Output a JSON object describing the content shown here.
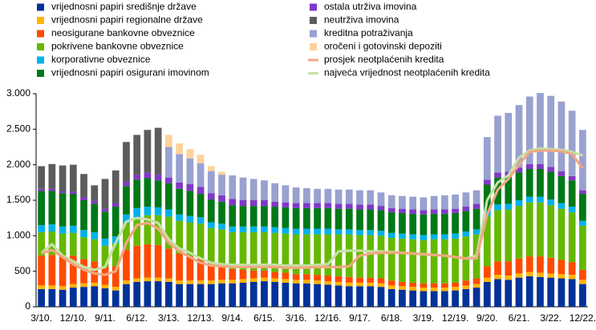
{
  "chart_data": {
    "type": "bar",
    "stacked": true,
    "categories": [
      "3/10.",
      null,
      null,
      "12/10.",
      null,
      null,
      "9/11.",
      null,
      null,
      "6/12.",
      null,
      null,
      "3/13.",
      null,
      null,
      "12/13.",
      null,
      null,
      "9/14.",
      null,
      null,
      "6/15.",
      null,
      null,
      "3/16.",
      null,
      null,
      "12/16.",
      null,
      null,
      "9/17.",
      null,
      null,
      "6/18.",
      null,
      null,
      "3/19.",
      null,
      null,
      "12/19.",
      null,
      null,
      "9/20.",
      null,
      null,
      "6/21.",
      null,
      null,
      "3/22.",
      null,
      null,
      "12/22."
    ],
    "ylim": [
      0,
      3000
    ],
    "yticks": [
      0,
      500,
      {
        "value": 1000,
        "label": "1.000"
      },
      {
        "value": 1500,
        "label": "1.500"
      },
      {
        "value": 2000,
        "label": "2.000"
      },
      {
        "value": 2500,
        "label": "2.500"
      },
      {
        "value": 3000,
        "label": "3.000"
      }
    ],
    "grid": false,
    "series": [
      {
        "name": "vrijednosni papiri središnje države",
        "color": "#003299",
        "values": [
          250,
          250,
          240,
          270,
          280,
          290,
          260,
          230,
          320,
          350,
          360,
          360,
          350,
          320,
          320,
          320,
          320,
          330,
          330,
          340,
          350,
          360,
          350,
          340,
          330,
          330,
          320,
          310,
          300,
          290,
          290,
          290,
          280,
          250,
          240,
          230,
          220,
          220,
          220,
          230,
          250,
          270,
          350,
          390,
          380,
          410,
          430,
          420,
          410,
          400,
          390,
          320
        ]
      },
      {
        "name": "vrijednosni papiri regionalne države",
        "color": "#ffb400",
        "values": [
          50,
          50,
          50,
          50,
          50,
          50,
          50,
          50,
          50,
          50,
          50,
          50,
          50,
          50,
          50,
          50,
          50,
          50,
          50,
          50,
          50,
          50,
          50,
          50,
          50,
          50,
          50,
          50,
          50,
          50,
          50,
          50,
          50,
          50,
          50,
          50,
          50,
          50,
          50,
          50,
          50,
          50,
          60,
          60,
          60,
          60,
          60,
          60,
          60,
          60,
          60,
          60
        ]
      },
      {
        "name": "neosigurane bankovne obveznice",
        "color": "#ff4b00",
        "values": [
          420,
          430,
          410,
          400,
          340,
          300,
          260,
          290,
          430,
          460,
          470,
          460,
          420,
          380,
          340,
          300,
          240,
          200,
          150,
          130,
          110,
          100,
          90,
          90,
          80,
          80,
          80,
          80,
          80,
          80,
          70,
          70,
          70,
          70,
          60,
          60,
          60,
          60,
          60,
          60,
          70,
          80,
          160,
          190,
          200,
          210,
          220,
          230,
          220,
          200,
          180,
          140
        ]
      },
      {
        "name": "pokrivene bankovne obveznice",
        "color": "#65b800",
        "values": [
          330,
          330,
          330,
          320,
          310,
          310,
          290,
          320,
          380,
          400,
          410,
          420,
          450,
          460,
          480,
          500,
          500,
          510,
          520,
          530,
          540,
          540,
          550,
          550,
          560,
          560,
          570,
          580,
          590,
          600,
          600,
          600,
          600,
          600,
          610,
          610,
          610,
          620,
          620,
          620,
          620,
          620,
          700,
          720,
          730,
          740,
          760,
          760,
          740,
          720,
          700,
          620
        ]
      },
      {
        "name": "korporativne obveznice",
        "color": "#00b1ea",
        "values": [
          100,
          100,
          100,
          100,
          100,
          100,
          100,
          100,
          120,
          130,
          120,
          110,
          100,
          90,
          90,
          90,
          80,
          80,
          80,
          80,
          80,
          80,
          80,
          80,
          80,
          80,
          80,
          80,
          70,
          70,
          70,
          70,
          70,
          70,
          70,
          70,
          70,
          70,
          70,
          70,
          70,
          70,
          80,
          80,
          80,
          80,
          80,
          80,
          80,
          80,
          80,
          70
        ]
      },
      {
        "name": "vrijednosni papiri osigurani imovinom",
        "color": "#007816",
        "values": [
          480,
          470,
          470,
          450,
          420,
          400,
          380,
          420,
          400,
          400,
          400,
          380,
          370,
          360,
          350,
          330,
          320,
          310,
          300,
          290,
          290,
          290,
          290,
          290,
          290,
          290,
          290,
          290,
          290,
          290,
          290,
          290,
          290,
          290,
          290,
          290,
          290,
          290,
          290,
          290,
          290,
          290,
          370,
          380,
          380,
          390,
          390,
          390,
          390,
          380,
          370,
          380
        ]
      },
      {
        "name": "ostala utrživa imovina",
        "color": "#8139c6",
        "values": [
          30,
          30,
          30,
          30,
          40,
          40,
          40,
          50,
          60,
          70,
          80,
          80,
          80,
          90,
          100,
          100,
          90,
          90,
          90,
          80,
          80,
          80,
          70,
          70,
          70,
          70,
          70,
          70,
          70,
          70,
          70,
          70,
          60,
          60,
          60,
          60,
          60,
          60,
          60,
          60,
          60,
          70,
          70,
          70,
          70,
          70,
          70,
          70,
          70,
          70,
          60,
          50
        ]
      },
      {
        "name": "neutrživa imovina",
        "color": "#5c5c5c",
        "values": [
          320,
          350,
          360,
          380,
          330,
          220,
          420,
          460,
          560,
          560,
          600,
          660,
          0,
          0,
          0,
          0,
          0,
          0,
          0,
          0,
          0,
          0,
          0,
          0,
          0,
          0,
          0,
          0,
          0,
          0,
          0,
          0,
          0,
          0,
          0,
          0,
          0,
          0,
          0,
          0,
          0,
          0,
          0,
          0,
          0,
          0,
          0,
          0,
          0,
          0,
          0,
          0
        ]
      },
      {
        "name": "kreditna potraživanja",
        "color": "#98a1d0",
        "values": [
          0,
          0,
          0,
          0,
          0,
          0,
          0,
          0,
          0,
          0,
          0,
          0,
          430,
          400,
          360,
          330,
          310,
          290,
          330,
          320,
          300,
          280,
          260,
          240,
          220,
          210,
          200,
          200,
          200,
          200,
          200,
          200,
          190,
          180,
          180,
          180,
          180,
          190,
          200,
          200,
          200,
          190,
          600,
          800,
          830,
          880,
          950,
          1000,
          1000,
          980,
          920,
          850
        ]
      },
      {
        "name": "oročeni i gotovinski depoziti",
        "color": "#fdd29a",
        "values": [
          0,
          0,
          0,
          0,
          0,
          0,
          0,
          0,
          0,
          0,
          0,
          0,
          170,
          150,
          130,
          120,
          70,
          40,
          0,
          0,
          0,
          0,
          0,
          0,
          0,
          0,
          0,
          0,
          0,
          0,
          0,
          0,
          0,
          0,
          0,
          0,
          0,
          0,
          0,
          0,
          0,
          0,
          0,
          0,
          0,
          0,
          0,
          0,
          0,
          0,
          0,
          0
        ]
      },
      {
        "name": "prosjek neotplaćenih kredita",
        "type": "line",
        "color": "#f0a881",
        "values": [
          750,
          800,
          700,
          600,
          520,
          470,
          450,
          500,
          900,
          1150,
          1180,
          1100,
          900,
          780,
          700,
          620,
          580,
          570,
          560,
          560,
          560,
          560,
          560,
          550,
          550,
          550,
          560,
          560,
          560,
          570,
          720,
          750,
          760,
          760,
          760,
          750,
          740,
          730,
          720,
          700,
          680,
          680,
          1300,
          1650,
          1800,
          2000,
          2180,
          2200,
          2200,
          2190,
          2150,
          1950
        ]
      },
      {
        "name": "najveća vrijednost neotplaćenih kredita",
        "type": "line",
        "color": "#c6e0a8",
        "values": [
          760,
          880,
          720,
          640,
          560,
          520,
          560,
          900,
          1200,
          1250,
          1230,
          1180,
          950,
          820,
          760,
          680,
          620,
          600,
          590,
          590,
          590,
          590,
          590,
          580,
          580,
          580,
          590,
          600,
          780,
          790,
          790,
          780,
          780,
          770,
          760,
          750,
          740,
          730,
          720,
          700,
          680,
          720,
          1500,
          1750,
          1850,
          2100,
          2200,
          2230,
          2220,
          2210,
          2180,
          2130
        ]
      }
    ]
  }
}
